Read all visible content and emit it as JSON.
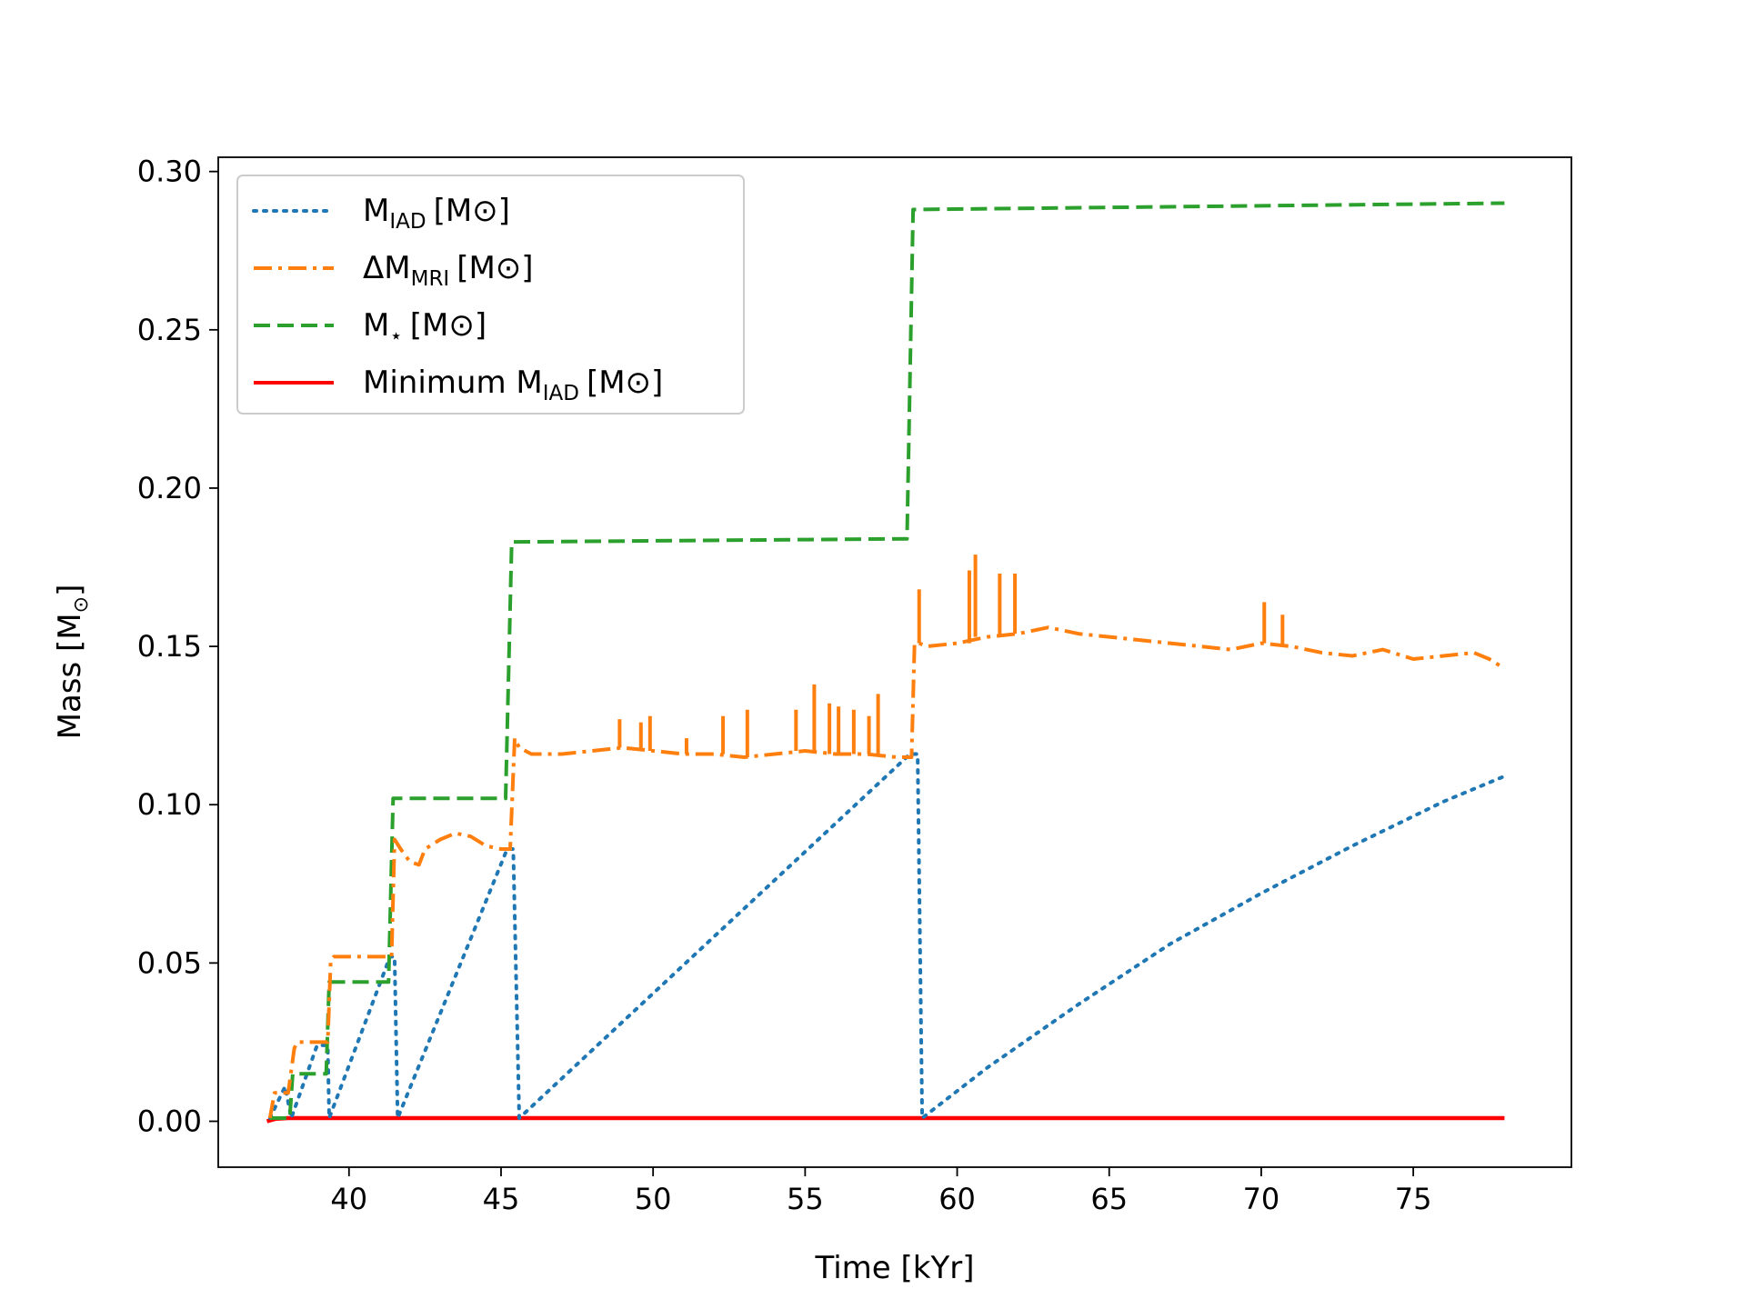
{
  "chart_data": {
    "type": "line",
    "title": "",
    "xlabel": "Time [kYr]",
    "ylabel": "Mass [M",
    "ylabel_sub": "⊙",
    "ylabel_close": "]",
    "xlim": [
      35.7,
      80.2
    ],
    "ylim": [
      -0.0145,
      0.3045
    ],
    "xticks": [
      40,
      45,
      50,
      55,
      60,
      65,
      70,
      75
    ],
    "xtick_labels": [
      "40",
      "45",
      "50",
      "55",
      "60",
      "65",
      "70",
      "75"
    ],
    "yticks": [
      0.0,
      0.05,
      0.1,
      0.15,
      0.2,
      0.25,
      0.3
    ],
    "ytick_labels": [
      "0.00",
      "0.05",
      "0.10",
      "0.15",
      "0.20",
      "0.25",
      "0.30"
    ],
    "grid": false,
    "legend_position": "top-left",
    "series": [
      {
        "key": "iad",
        "legend_main": "M",
        "legend_sub": "IAD",
        "legend_unit": "[M⊙]",
        "color": "#1f77b4",
        "style": "dotted",
        "x": [
          37.4,
          37.9,
          38.1,
          38.95,
          39.3,
          39.35,
          41.35,
          41.5,
          41.6,
          45.2,
          45.4,
          45.6,
          58.45,
          58.7,
          58.85,
          61,
          64,
          67,
          70,
          73,
          76,
          78
        ],
        "y": [
          0.001,
          0.011,
          0.001,
          0.024,
          0.024,
          0.001,
          0.052,
          0.052,
          0.001,
          0.086,
          0.086,
          0.001,
          0.116,
          0.116,
          0.001,
          0.017,
          0.037,
          0.056,
          0.072,
          0.087,
          0.101,
          0.109
        ]
      },
      {
        "key": "mri",
        "legend_main": "ΔM",
        "legend_sub": "MRI",
        "legend_unit": "[M⊙]",
        "color": "#ff7f0e",
        "style": "dashdot",
        "x": [
          37.4,
          37.55,
          37.7,
          38.0,
          38.2,
          38.3,
          38.8,
          39.3,
          39.4,
          39.5,
          41.4,
          41.5,
          41.7,
          42.0,
          42.3,
          42.5,
          43.0,
          43.5,
          44.0,
          44.5,
          45.0,
          45.3,
          45.45,
          45.6,
          46.0,
          47,
          48,
          49,
          50,
          51,
          52,
          53,
          54,
          55,
          56,
          57,
          58,
          58.5,
          58.6,
          58.75,
          59.0,
          60,
          61,
          62,
          63,
          64,
          65,
          66,
          67,
          68,
          69,
          70,
          71,
          72,
          73,
          74,
          75,
          76,
          77,
          77.5,
          78
        ],
        "y": [
          0.001,
          0.009,
          0.009,
          0.009,
          0.023,
          0.025,
          0.025,
          0.025,
          0.051,
          0.052,
          0.052,
          0.089,
          0.086,
          0.082,
          0.081,
          0.086,
          0.089,
          0.091,
          0.09,
          0.087,
          0.086,
          0.086,
          0.121,
          0.118,
          0.116,
          0.116,
          0.117,
          0.118,
          0.117,
          0.116,
          0.116,
          0.115,
          0.116,
          0.117,
          0.116,
          0.116,
          0.115,
          0.115,
          0.151,
          0.151,
          0.15,
          0.151,
          0.153,
          0.154,
          0.156,
          0.154,
          0.153,
          0.152,
          0.151,
          0.15,
          0.149,
          0.151,
          0.15,
          0.148,
          0.147,
          0.149,
          0.146,
          0.147,
          0.148,
          0.146,
          0.143
        ],
        "spikes_x": [
          48.9,
          49.6,
          49.9,
          51.1,
          52.3,
          53.1,
          54.7,
          55.3,
          55.8,
          56.1,
          56.6,
          57.1,
          57.4,
          58.75,
          60.4,
          60.6,
          61.4,
          61.9,
          70.1,
          70.7
        ],
        "spikes_y": [
          0.127,
          0.126,
          0.128,
          0.121,
          0.128,
          0.13,
          0.13,
          0.138,
          0.132,
          0.131,
          0.13,
          0.128,
          0.135,
          0.168,
          0.174,
          0.179,
          0.173,
          0.173,
          0.164,
          0.16
        ]
      },
      {
        "key": "mstar",
        "legend_main": "M",
        "legend_sub": "⋆",
        "legend_unit": "[M⊙]",
        "color": "#2ca02c",
        "style": "dashed",
        "x": [
          37.4,
          37.5,
          37.7,
          38.05,
          38.15,
          39.25,
          39.35,
          41.3,
          41.45,
          45.15,
          45.35,
          58.35,
          58.55,
          78
        ],
        "y": [
          0.001,
          0.001,
          0.001,
          0.001,
          0.015,
          0.015,
          0.044,
          0.044,
          0.102,
          0.102,
          0.183,
          0.184,
          0.288,
          0.29
        ]
      },
      {
        "key": "min",
        "legend_main": "Minimum M",
        "legend_sub": "IAD",
        "legend_unit": "[M⊙]",
        "color": "#ff0000",
        "style": "solid",
        "x": [
          37.3,
          37.6,
          38.0,
          78
        ],
        "y": [
          0.0,
          0.0008,
          0.001,
          0.001
        ]
      }
    ]
  }
}
